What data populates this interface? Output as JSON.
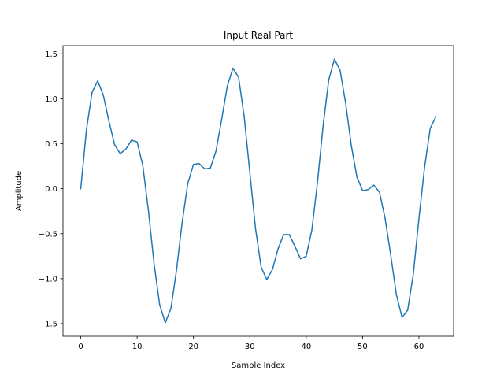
{
  "chart_data": {
    "type": "line",
    "title": "Input Real Part",
    "xlabel": "Sample Index",
    "ylabel": "Amplitude",
    "xlim": [
      -3.15,
      66.15
    ],
    "ylim": [
      -1.64,
      1.59
    ],
    "xticks": [
      0,
      10,
      20,
      30,
      40,
      50,
      60
    ],
    "yticks": [
      -1.5,
      -1.0,
      -0.5,
      0.0,
      0.5,
      1.0,
      1.5
    ],
    "xtick_labels": [
      "0",
      "10",
      "20",
      "30",
      "40",
      "50",
      "60"
    ],
    "ytick_labels": [
      "−1.5",
      "−1.0",
      "−0.5",
      "0.0",
      "0.5",
      "1.0",
      "1.5"
    ],
    "grid": false,
    "series": [
      {
        "color": "#1f77b4",
        "x": [
          0,
          1,
          2,
          3,
          4,
          5,
          6,
          7,
          8,
          9,
          10,
          11,
          12,
          13,
          14,
          15,
          16,
          17,
          18,
          19,
          20,
          21,
          22,
          23,
          24,
          25,
          26,
          27,
          28,
          29,
          30,
          31,
          32,
          33,
          34,
          35,
          36,
          37,
          38,
          39,
          40,
          41,
          42,
          43,
          44,
          45,
          46,
          47,
          48,
          49,
          50,
          51,
          52,
          53,
          54,
          55,
          56,
          57,
          58,
          59,
          60,
          61,
          62,
          63
        ],
        "y": [
          0.0,
          0.65,
          1.07,
          1.2,
          1.04,
          0.75,
          0.49,
          0.39,
          0.44,
          0.54,
          0.52,
          0.26,
          -0.24,
          -0.83,
          -1.29,
          -1.49,
          -1.33,
          -0.9,
          -0.37,
          0.06,
          0.27,
          0.28,
          0.22,
          0.23,
          0.42,
          0.77,
          1.14,
          1.34,
          1.24,
          0.8,
          0.18,
          -0.44,
          -0.87,
          -1.01,
          -0.9,
          -0.67,
          -0.51,
          -0.51,
          -0.64,
          -0.78,
          -0.75,
          -0.46,
          0.07,
          0.7,
          1.21,
          1.44,
          1.32,
          0.95,
          0.48,
          0.13,
          -0.02,
          -0.01,
          0.04,
          -0.04,
          -0.33,
          -0.74,
          -1.18,
          -1.43,
          -1.35,
          -0.95,
          -0.33,
          0.24,
          0.67,
          0.8
        ]
      }
    ]
  }
}
